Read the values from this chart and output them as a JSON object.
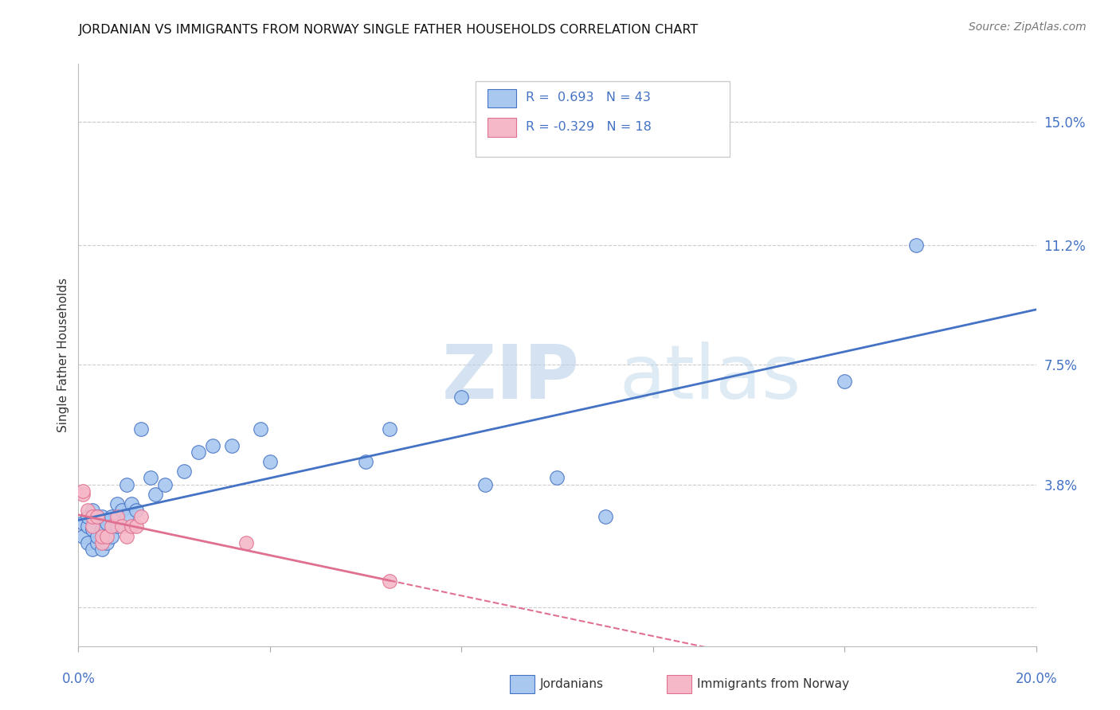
{
  "title": "JORDANIAN VS IMMIGRANTS FROM NORWAY SINGLE FATHER HOUSEHOLDS CORRELATION CHART",
  "source": "Source: ZipAtlas.com",
  "ylabel": "Single Father Households",
  "xlim": [
    0.0,
    0.2
  ],
  "ylim": [
    -0.012,
    0.168
  ],
  "ytick_vals": [
    0.0,
    0.038,
    0.075,
    0.112,
    0.15
  ],
  "ytick_labels": [
    "",
    "3.8%",
    "7.5%",
    "11.2%",
    "15.0%"
  ],
  "xtick_vals": [
    0.0,
    0.04,
    0.08,
    0.12,
    0.16,
    0.2
  ],
  "grid_color": "#cccccc",
  "background_color": "#ffffff",
  "jordanians_color": "#a8c8f0",
  "norway_color": "#f5b8c8",
  "jordanians_line_color": "#4472c4",
  "norway_line_color": "#e07090",
  "jordanians_x": [
    0.001,
    0.001,
    0.002,
    0.002,
    0.002,
    0.003,
    0.003,
    0.003,
    0.004,
    0.004,
    0.004,
    0.005,
    0.005,
    0.005,
    0.006,
    0.006,
    0.007,
    0.007,
    0.008,
    0.008,
    0.009,
    0.01,
    0.01,
    0.011,
    0.012,
    0.013,
    0.015,
    0.016,
    0.018,
    0.022,
    0.025,
    0.028,
    0.032,
    0.038,
    0.04,
    0.06,
    0.065,
    0.08,
    0.085,
    0.1,
    0.11,
    0.16,
    0.175
  ],
  "jordanians_y": [
    0.022,
    0.026,
    0.02,
    0.025,
    0.028,
    0.018,
    0.024,
    0.03,
    0.02,
    0.022,
    0.028,
    0.018,
    0.024,
    0.028,
    0.02,
    0.026,
    0.022,
    0.028,
    0.025,
    0.032,
    0.03,
    0.028,
    0.038,
    0.032,
    0.03,
    0.055,
    0.04,
    0.035,
    0.038,
    0.042,
    0.048,
    0.05,
    0.05,
    0.055,
    0.045,
    0.045,
    0.055,
    0.065,
    0.038,
    0.04,
    0.028,
    0.07,
    0.112
  ],
  "norway_x": [
    0.001,
    0.001,
    0.002,
    0.003,
    0.003,
    0.004,
    0.005,
    0.005,
    0.006,
    0.007,
    0.008,
    0.009,
    0.01,
    0.011,
    0.012,
    0.013,
    0.035,
    0.065
  ],
  "norway_y": [
    0.035,
    0.036,
    0.03,
    0.025,
    0.028,
    0.028,
    0.02,
    0.022,
    0.022,
    0.025,
    0.028,
    0.025,
    0.022,
    0.025,
    0.025,
    0.028,
    0.02,
    0.008
  ]
}
